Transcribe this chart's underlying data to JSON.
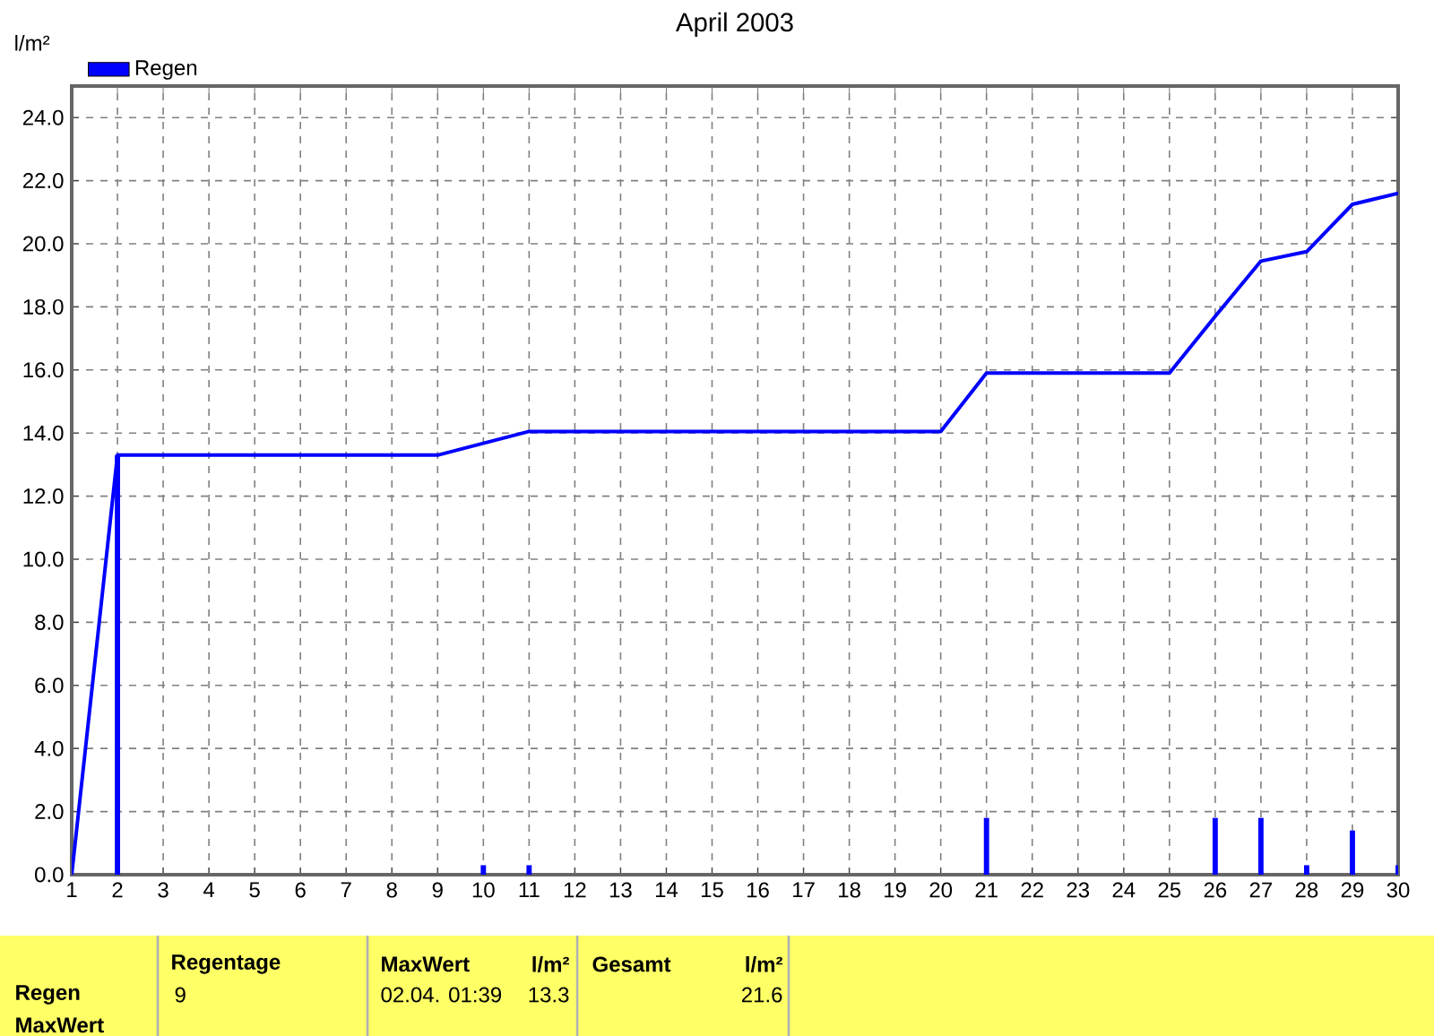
{
  "chart_data": {
    "type": "line",
    "title": "April 2003",
    "ylabel": "l/m²",
    "xlim": [
      1,
      30
    ],
    "xticks": [
      1,
      2,
      3,
      4,
      5,
      6,
      7,
      8,
      9,
      10,
      11,
      12,
      13,
      14,
      15,
      16,
      17,
      18,
      19,
      20,
      21,
      22,
      23,
      24,
      25,
      26,
      27,
      28,
      29,
      30
    ],
    "ylim": [
      0,
      25
    ],
    "yticks": [
      {
        "value": 0,
        "label": "0.0"
      },
      {
        "value": 2,
        "label": "2.0"
      },
      {
        "value": 4,
        "label": "4.0"
      },
      {
        "value": 6,
        "label": "6.0"
      },
      {
        "value": 8,
        "label": "8.0"
      },
      {
        "value": 10,
        "label": "10.0"
      },
      {
        "value": 12,
        "label": "12.0"
      },
      {
        "value": 14,
        "label": "14.0"
      },
      {
        "value": 16,
        "label": "16.0"
      },
      {
        "value": 18,
        "label": "18.0"
      },
      {
        "value": 20,
        "label": "20.0"
      },
      {
        "value": 22,
        "label": "22.0"
      },
      {
        "value": 24,
        "label": "24.0"
      }
    ],
    "grid": true,
    "legend": "top left",
    "series": [
      {
        "name": "Regen",
        "type": "bar",
        "color": "#0000ff",
        "x": [
          2,
          10,
          11,
          21,
          26,
          27,
          28,
          29,
          30
        ],
        "values": [
          13.3,
          0.3,
          0.3,
          1.8,
          1.8,
          1.8,
          0.3,
          1.4,
          0.3
        ]
      },
      {
        "color": "#0000ff",
        "x": [
          1,
          2,
          9,
          11,
          20,
          21,
          25,
          26,
          27,
          28,
          29,
          30
        ],
        "values": [
          0,
          13.3,
          13.3,
          14.05,
          14.05,
          15.9,
          15.9,
          17.7,
          19.45,
          19.75,
          21.25,
          21.6
        ]
      }
    ],
    "annotations": [
      "Regen",
      "MaxWert",
      "Regentage",
      "9",
      "MaxWert",
      "l/m²",
      "02.04. 01:39",
      "13.3",
      "Gesamt",
      "l/m²",
      "21.6"
    ]
  }
}
